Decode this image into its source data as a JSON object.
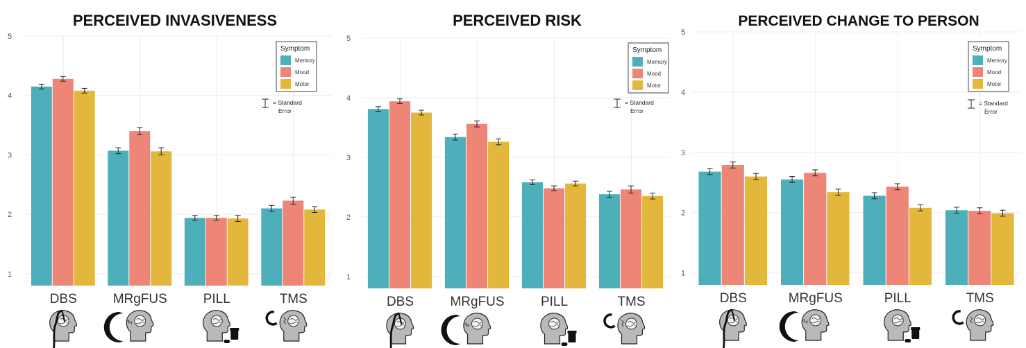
{
  "colors": {
    "Memory": "#4DAFB9",
    "Mood": "#EE8677",
    "Motor": "#E3B73C"
  },
  "legend": {
    "title": "Symptom",
    "items": [
      "Memory",
      "Mood",
      "Motor"
    ],
    "se_label_1": "= Standard",
    "se_label_2": "Error"
  },
  "icons": [
    "dbs-electrode-head-icon",
    "mrgfus-ultrasound-head-icon",
    "pill-bottle-head-icon",
    "tms-coil-head-icon"
  ],
  "chart_data": [
    {
      "type": "bar",
      "title": "PERCEIVED INVASIVENESS",
      "categories": [
        "DBS",
        "MRgFUS",
        "PILL",
        "TMS"
      ],
      "ylim": [
        0.8,
        5
      ],
      "yticks": [
        1,
        2,
        3,
        4,
        5
      ],
      "grid": true,
      "legend_position": "top-right",
      "series": [
        {
          "name": "Memory",
          "values": [
            4.15,
            3.07,
            1.94,
            2.1
          ],
          "se": [
            0.04,
            0.05,
            0.04,
            0.05
          ]
        },
        {
          "name": "Mood",
          "values": [
            4.28,
            3.4,
            1.94,
            2.23
          ],
          "se": [
            0.04,
            0.06,
            0.04,
            0.06
          ]
        },
        {
          "name": "Motor",
          "values": [
            4.08,
            3.06,
            1.93,
            2.08
          ],
          "se": [
            0.04,
            0.06,
            0.05,
            0.05
          ]
        }
      ]
    },
    {
      "type": "bar",
      "title": "PERCEIVED RISK",
      "categories": [
        "DBS",
        "MRgFUS",
        "PILL",
        "TMS"
      ],
      "ylim": [
        0.8,
        5
      ],
      "yticks": [
        1,
        2,
        3,
        4,
        5
      ],
      "grid": true,
      "legend_position": "top-right",
      "series": [
        {
          "name": "Memory",
          "values": [
            3.81,
            3.34,
            2.58,
            2.38
          ],
          "se": [
            0.04,
            0.05,
            0.04,
            0.05
          ]
        },
        {
          "name": "Mood",
          "values": [
            3.94,
            3.56,
            2.48,
            2.46
          ],
          "se": [
            0.04,
            0.05,
            0.04,
            0.06
          ]
        },
        {
          "name": "Motor",
          "values": [
            3.75,
            3.26,
            2.56,
            2.35
          ],
          "se": [
            0.04,
            0.05,
            0.04,
            0.05
          ]
        }
      ]
    },
    {
      "type": "bar",
      "title": "PERCEIVED CHANGE TO PERSON",
      "categories": [
        "DBS",
        "MRgFUS",
        "PILL",
        "TMS"
      ],
      "ylim": [
        0.8,
        5
      ],
      "yticks": [
        1,
        2,
        3,
        4,
        5
      ],
      "grid": true,
      "legend_position": "top-right",
      "series": [
        {
          "name": "Memory",
          "values": [
            2.68,
            2.55,
            2.28,
            2.04
          ],
          "se": [
            0.05,
            0.05,
            0.05,
            0.05
          ]
        },
        {
          "name": "Mood",
          "values": [
            2.79,
            2.66,
            2.43,
            2.03
          ],
          "se": [
            0.05,
            0.05,
            0.05,
            0.05
          ]
        },
        {
          "name": "Motor",
          "values": [
            2.6,
            2.34,
            2.08,
            1.99
          ],
          "se": [
            0.05,
            0.05,
            0.05,
            0.05
          ]
        }
      ]
    }
  ]
}
